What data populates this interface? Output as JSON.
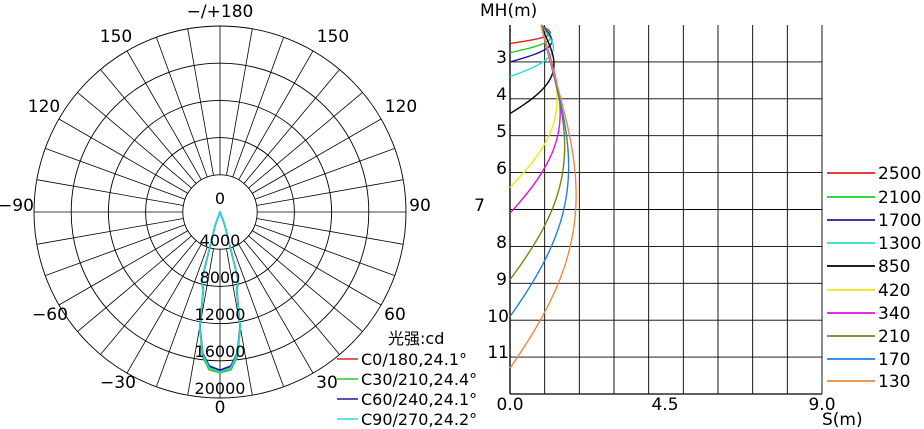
{
  "chart_data": [
    {
      "type": "polar",
      "title": "光强:cd",
      "angle_labels": [
        "−/+180",
        "150",
        "150",
        "120",
        "120",
        "−90",
        "90",
        "−60",
        "60",
        "−30",
        "30",
        "0"
      ],
      "radial_ticks": [
        0,
        4000,
        8000,
        12000,
        16000,
        20000
      ],
      "radial_tick_labels": [
        "0",
        "4000",
        "8000",
        "12000",
        "16000",
        "20000"
      ],
      "series": [
        {
          "name": "C0/180,24.1°",
          "color": "#e8201a",
          "angles": [
            -20,
            -15,
            -12.05,
            -10,
            -7,
            -4,
            0,
            4,
            7,
            10,
            12.05,
            15,
            20
          ],
          "values": [
            1400,
            7600,
            8550,
            12500,
            15300,
            16700,
            17100,
            16700,
            15300,
            12500,
            8550,
            7600,
            1400
          ]
        },
        {
          "name": "C30/210,24.4°",
          "color": "#22cc22",
          "angles": [
            -20,
            -15,
            -12.2,
            -10,
            -7,
            -4,
            0,
            4,
            7,
            10,
            12.2,
            15,
            20
          ],
          "values": [
            1500,
            7700,
            8600,
            12600,
            15600,
            17000,
            17300,
            17000,
            15600,
            12600,
            8600,
            7700,
            1500
          ]
        },
        {
          "name": "C60/240,24.1°",
          "color": "#1c1c9c",
          "angles": [
            -20,
            -15,
            -12.05,
            -10,
            -7,
            -4,
            0,
            4,
            7,
            10,
            12.05,
            15,
            20
          ],
          "values": [
            1450,
            7600,
            8550,
            12400,
            15300,
            16600,
            17000,
            16600,
            15300,
            12400,
            8550,
            7600,
            1450
          ]
        },
        {
          "name": "C90/270,24.2°",
          "color": "#2ad9d9",
          "angles": [
            -20,
            -15,
            -12.1,
            -10,
            -7,
            -4,
            0,
            4,
            7,
            10,
            12.1,
            15,
            20
          ],
          "values": [
            1450,
            7600,
            8550,
            12500,
            15400,
            16800,
            17200,
            16800,
            15400,
            12500,
            8550,
            7600,
            1450
          ]
        }
      ]
    },
    {
      "type": "line",
      "title": "",
      "xlabel": "S(m)",
      "ylabel": "MH(m)",
      "xlim": [
        0,
        9
      ],
      "ylim": [
        2,
        12
      ],
      "x_tick_labels": [
        "0.0",
        "4.5",
        "9.0"
      ],
      "y_tick_labels": [
        "3",
        "4",
        "5",
        "6",
        "7",
        "8",
        "9",
        "10",
        "11"
      ],
      "x_ticks": [
        0,
        4.5,
        9
      ],
      "y_ticks": [
        3,
        4,
        5,
        6,
        7,
        8,
        9,
        10,
        11
      ],
      "legend_position": "right",
      "series": [
        {
          "name": "2500",
          "color": "#e8201a",
          "depth": 2.5,
          "half_width": 0.89
        },
        {
          "name": "2100",
          "color": "#22cc22",
          "depth": 2.75,
          "half_width": 0.91
        },
        {
          "name": "1700",
          "color": "#1c1c9c",
          "depth": 3.0,
          "half_width": 0.96
        },
        {
          "name": "1300",
          "color": "#2ad9d9",
          "depth": 3.4,
          "half_width": 1.02
        },
        {
          "name": "850",
          "color": "#000000",
          "depth": 4.4,
          "half_width": 1.04
        },
        {
          "name": "420",
          "color": "#f0e80c",
          "depth": 6.4,
          "half_width": 1.16
        },
        {
          "name": "340",
          "color": "#dd11dd",
          "depth": 7.1,
          "half_width": 1.28
        },
        {
          "name": "210",
          "color": "#808010",
          "depth": 8.9,
          "half_width": 1.45
        },
        {
          "name": "170",
          "color": "#1f7fe0",
          "depth": 9.9,
          "half_width": 1.6
        },
        {
          "name": "130",
          "color": "#ee8844",
          "depth": 11.3,
          "half_width": 1.88
        }
      ]
    }
  ]
}
